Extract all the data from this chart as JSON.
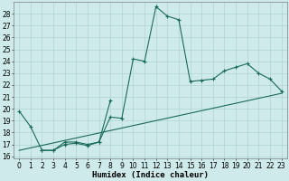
{
  "xlabel": "Humidex (Indice chaleur)",
  "x_values": [
    0,
    1,
    2,
    3,
    4,
    5,
    6,
    7,
    8,
    9,
    10,
    11,
    12,
    13,
    14,
    15,
    16,
    17,
    18,
    19,
    20,
    21,
    22,
    23
  ],
  "line1_y": [
    19.8,
    18.5,
    16.5,
    16.5,
    17.2,
    17.2,
    17.0,
    17.2,
    19.3,
    19.2,
    24.2,
    24.0,
    28.6,
    27.8,
    27.5,
    22.3,
    22.4,
    22.5,
    23.2,
    23.5,
    23.8,
    23.0,
    22.5,
    21.5
  ],
  "seg2_x": [
    2,
    3,
    4,
    5,
    6,
    7,
    8
  ],
  "seg2_y": [
    16.5,
    16.5,
    17.0,
    17.1,
    16.9,
    17.2,
    20.7
  ],
  "trend_x": [
    0,
    23
  ],
  "trend_y": [
    16.5,
    21.3
  ],
  "ylim": [
    15.8,
    29.0
  ],
  "xlim": [
    -0.5,
    23.5
  ],
  "yticks": [
    16,
    17,
    18,
    19,
    20,
    21,
    22,
    23,
    24,
    25,
    26,
    27,
    28
  ],
  "xticks": [
    0,
    1,
    2,
    3,
    4,
    5,
    6,
    7,
    8,
    9,
    10,
    11,
    12,
    13,
    14,
    15,
    16,
    17,
    18,
    19,
    20,
    21,
    22,
    23
  ],
  "line_color": "#1a6b5a",
  "bg_color": "#ceeaea",
  "grid_color": "#aacece",
  "tick_fontsize": 5.5,
  "xlabel_fontsize": 6.5,
  "linewidth": 0.8,
  "markersize": 2.5,
  "markeredgewidth": 0.8
}
